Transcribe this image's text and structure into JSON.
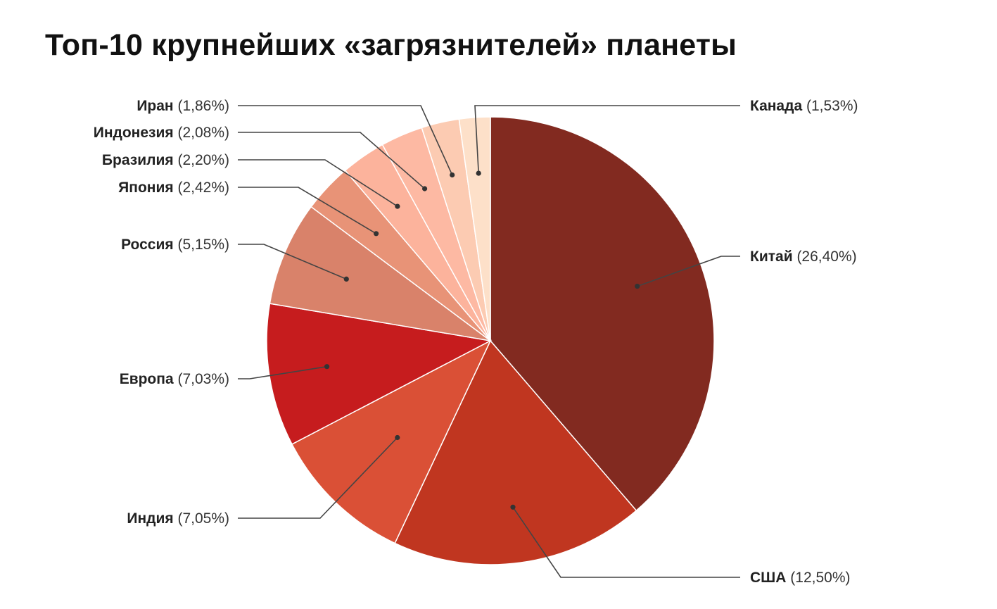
{
  "chart_data": {
    "type": "pie",
    "title": "Топ-10 крупнейших «загрязнителей» планеты",
    "slices": [
      {
        "name": "Китай",
        "value": 26.4,
        "label": "(26,40%)",
        "color": "#822A20"
      },
      {
        "name": "США",
        "value": 12.5,
        "label": "(12,50%)",
        "color": "#C03620"
      },
      {
        "name": "Индия",
        "value": 7.05,
        "label": "(7,05%)",
        "color": "#DA5036"
      },
      {
        "name": "Европа",
        "value": 7.03,
        "label": "(7,03%)",
        "color": "#C61C1E"
      },
      {
        "name": "Россия",
        "value": 5.15,
        "label": "(5,15%)",
        "color": "#D9826A"
      },
      {
        "name": "Япония",
        "value": 2.42,
        "label": "(2,42%)",
        "color": "#E89377"
      },
      {
        "name": "Бразилия",
        "value": 2.2,
        "label": "(2,20%)",
        "color": "#FCB39C"
      },
      {
        "name": "Индонезия",
        "value": 2.08,
        "label": "(2,08%)",
        "color": "#FDB9A3"
      },
      {
        "name": "Иран",
        "value": 1.86,
        "label": "(1,86%)",
        "color": "#FCCBB2"
      },
      {
        "name": "Канада",
        "value": 1.53,
        "label": "(1,53%)",
        "color": "#FDE0C9"
      }
    ],
    "legend": "none"
  }
}
